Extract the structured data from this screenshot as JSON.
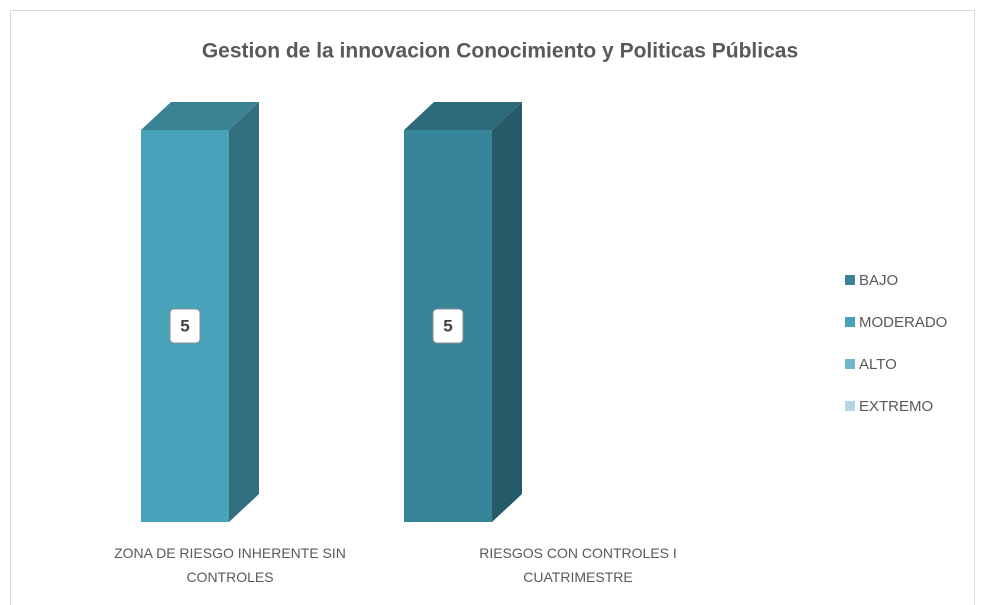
{
  "chart_data": {
    "type": "stacked_bar_3d",
    "title": "Gestion de la innovacion Conocimiento y Politicas Públicas",
    "categories": [
      "ZONA DE RIESGO INHERENTE SIN CONTROLES",
      "RIESGOS CON CONTROLES I CUATRIMESTRE"
    ],
    "series": [
      {
        "name": "BAJO",
        "color": "#378599",
        "values": [
          0,
          5
        ]
      },
      {
        "name": "MODERADO",
        "color": "#48a2b9",
        "values": [
          5,
          0
        ]
      },
      {
        "name": "ALTO",
        "color": "#72b8cc",
        "values": [
          0,
          0
        ]
      },
      {
        "name": "EXTREMO",
        "color": "#b4d6e0",
        "values": [
          0,
          0
        ]
      }
    ],
    "ylim": [
      0,
      5
    ],
    "legend": "right",
    "grid": false
  }
}
